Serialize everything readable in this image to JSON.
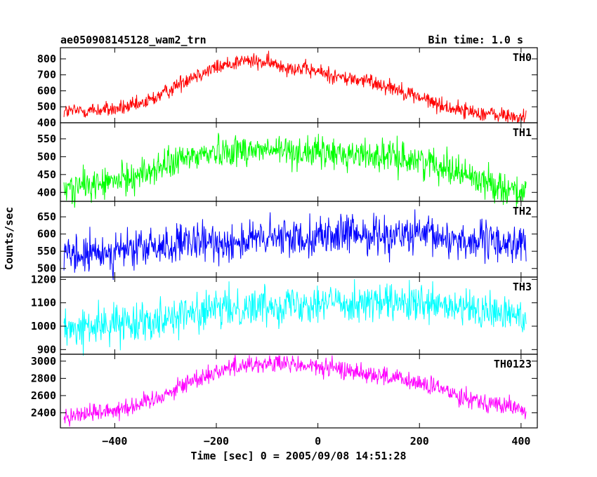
{
  "chart_data": {
    "type": "line",
    "title": "ae050908145128_wam2_trn",
    "bin_time_label": "Bin time: 1.0 s",
    "xlabel": "Time [sec] 0 = 2005/09/08 14:51:28",
    "ylabel": "Counts/sec",
    "xlim": [
      -507,
      432
    ],
    "x_ticks": [
      -400,
      -200,
      0,
      200,
      400
    ],
    "x_tick_labels": [
      "−400",
      "−200",
      "0",
      "200",
      "400"
    ],
    "x_range": [
      -500,
      410
    ],
    "bin_time": 1.0,
    "panels": [
      {
        "name": "TH0",
        "color": "#ff0000",
        "ylim": [
          400,
          870
        ],
        "y_ticks": [
          400,
          500,
          600,
          700,
          800
        ],
        "profile": [
          [
            -500,
            470
          ],
          [
            -400,
            485
          ],
          [
            -350,
            510
          ],
          [
            -300,
            590
          ],
          [
            -250,
            690
          ],
          [
            -200,
            745
          ],
          [
            -150,
            790
          ],
          [
            -100,
            775
          ],
          [
            -50,
            745
          ],
          [
            0,
            720
          ],
          [
            50,
            680
          ],
          [
            100,
            660
          ],
          [
            150,
            620
          ],
          [
            200,
            560
          ],
          [
            250,
            500
          ],
          [
            300,
            470
          ],
          [
            350,
            450
          ],
          [
            410,
            430
          ]
        ],
        "noise": 25
      },
      {
        "name": "TH1",
        "color": "#00ff00",
        "ylim": [
          375,
          595
        ],
        "y_ticks": [
          400,
          450,
          500,
          550
        ],
        "profile": [
          [
            -500,
            410
          ],
          [
            -400,
            430
          ],
          [
            -350,
            450
          ],
          [
            -300,
            475
          ],
          [
            -250,
            500
          ],
          [
            -200,
            515
          ],
          [
            -150,
            520
          ],
          [
            -50,
            515
          ],
          [
            0,
            510
          ],
          [
            100,
            505
          ],
          [
            200,
            490
          ],
          [
            250,
            475
          ],
          [
            300,
            445
          ],
          [
            350,
            420
          ],
          [
            410,
            400
          ]
        ],
        "noise": 22
      },
      {
        "name": "TH2",
        "color": "#0000ff",
        "ylim": [
          475,
          695
        ],
        "y_ticks": [
          500,
          550,
          600,
          650
        ],
        "profile": [
          [
            -500,
            530
          ],
          [
            -400,
            550
          ],
          [
            -300,
            565
          ],
          [
            -200,
            575
          ],
          [
            -100,
            585
          ],
          [
            0,
            595
          ],
          [
            100,
            600
          ],
          [
            200,
            595
          ],
          [
            300,
            580
          ],
          [
            410,
            570
          ]
        ],
        "noise": 28
      },
      {
        "name": "TH3",
        "color": "#00ffff",
        "ylim": [
          880,
          1210
        ],
        "y_ticks": [
          900,
          1000,
          1100,
          1200
        ],
        "profile": [
          [
            -500,
            980
          ],
          [
            -400,
            1010
          ],
          [
            -300,
            1040
          ],
          [
            -200,
            1070
          ],
          [
            -100,
            1090
          ],
          [
            0,
            1105
          ],
          [
            100,
            1100
          ],
          [
            200,
            1090
          ],
          [
            300,
            1070
          ],
          [
            410,
            1040
          ]
        ],
        "noise": 40
      },
      {
        "name": "TH0123",
        "color": "#ff00ff",
        "ylim": [
          2225,
          3080
        ],
        "y_ticks": [
          2400,
          2600,
          2800,
          3000
        ],
        "profile": [
          [
            -500,
            2360
          ],
          [
            -400,
            2440
          ],
          [
            -350,
            2500
          ],
          [
            -300,
            2620
          ],
          [
            -250,
            2770
          ],
          [
            -200,
            2880
          ],
          [
            -150,
            2960
          ],
          [
            -100,
            2970
          ],
          [
            -50,
            2960
          ],
          [
            0,
            2930
          ],
          [
            50,
            2900
          ],
          [
            100,
            2860
          ],
          [
            150,
            2800
          ],
          [
            200,
            2740
          ],
          [
            250,
            2660
          ],
          [
            300,
            2570
          ],
          [
            350,
            2500
          ],
          [
            410,
            2430
          ]
        ],
        "noise": 55
      }
    ],
    "grid": false,
    "legend": "panel labels top-right"
  }
}
